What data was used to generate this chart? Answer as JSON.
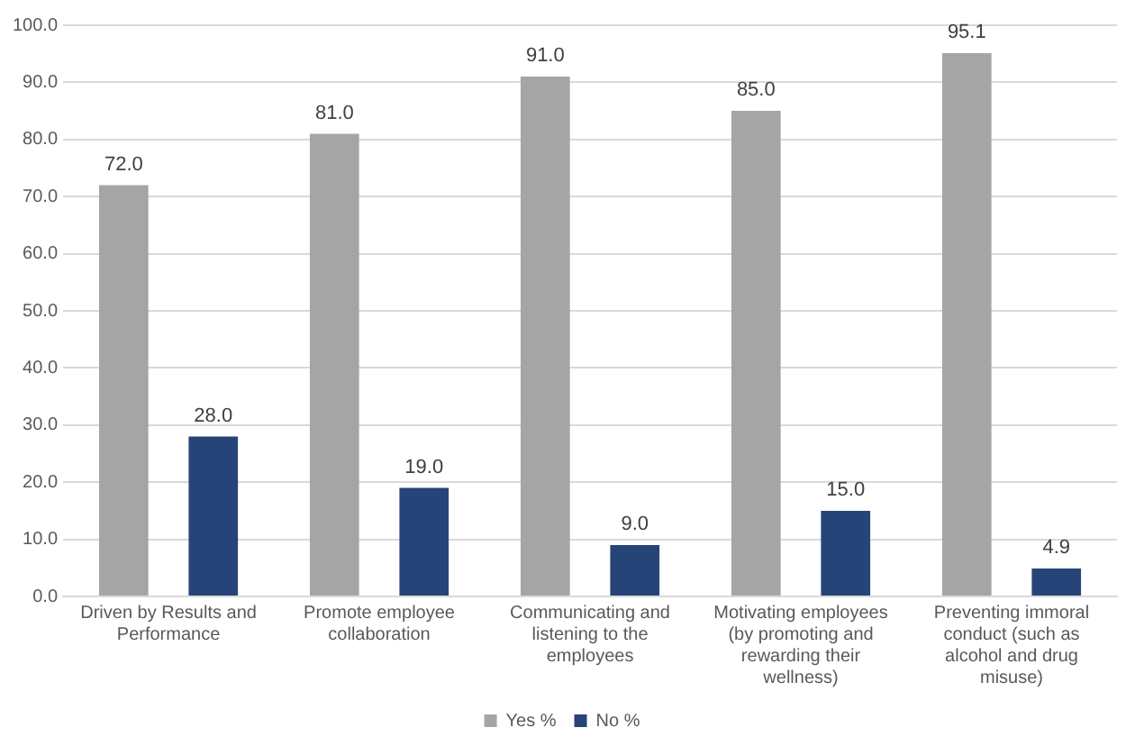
{
  "chart_data": {
    "type": "bar",
    "categories": [
      "Driven by Results and Performance",
      "Promote employee collaboration",
      "Communicating and listening to the employees",
      "Motivating employees (by promoting and rewarding their wellness)",
      "Preventing immoral conduct (such as alcohol and drug misuse)"
    ],
    "series": [
      {
        "name": "Yes %",
        "color": "#a5a5a5",
        "values": [
          72.0,
          81.0,
          91.0,
          85.0,
          95.1
        ],
        "value_labels": [
          "72.0",
          "81.0",
          "91.0",
          "85.0",
          "95.1"
        ]
      },
      {
        "name": "No %",
        "color": "#264478",
        "values": [
          28.0,
          19.0,
          9.0,
          15.0,
          4.9
        ],
        "value_labels": [
          "28.0",
          "19.0",
          "9.0",
          "15.0",
          "4.9"
        ]
      }
    ],
    "ylim": [
      0,
      100
    ],
    "yticks": [
      {
        "value": 0,
        "label": "0.0"
      },
      {
        "value": 10,
        "label": "10.0"
      },
      {
        "value": 20,
        "label": "20.0"
      },
      {
        "value": 30,
        "label": "30.0"
      },
      {
        "value": 40,
        "label": "40.0"
      },
      {
        "value": 50,
        "label": "50.0"
      },
      {
        "value": 60,
        "label": "60.0"
      },
      {
        "value": 70,
        "label": "70.0"
      },
      {
        "value": 80,
        "label": "80.0"
      },
      {
        "value": 90,
        "label": "90.0"
      },
      {
        "value": 100,
        "label": "100.0"
      }
    ],
    "grid": "y",
    "legend": "bottom"
  }
}
